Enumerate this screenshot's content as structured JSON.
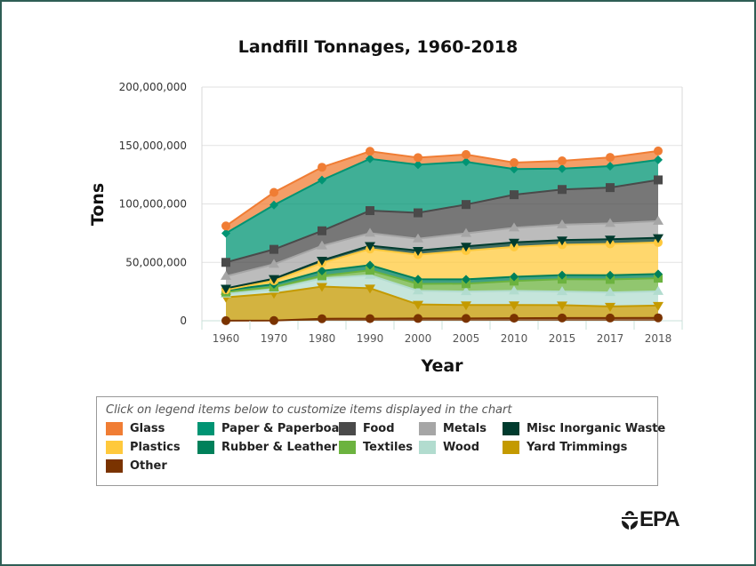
{
  "frame": {
    "border_color": "#2e5e55"
  },
  "chart_data": {
    "type": "area",
    "stacked": true,
    "title": "Landfill Tonnages, 1960-2018",
    "xlabel": "Year",
    "ylabel": "Tons",
    "ylim": [
      0,
      200000000
    ],
    "yticks": [
      0,
      50000000,
      100000000,
      150000000,
      200000000
    ],
    "ytick_labels": [
      "0",
      "50,000,000",
      "100,000,000",
      "150,000,000",
      "200,000,000"
    ],
    "categories": [
      "1960",
      "1970",
      "1980",
      "1990",
      "2000",
      "2005",
      "2010",
      "2015",
      "2017",
      "2018"
    ],
    "grid": true,
    "legend_position": "bottom",
    "series": [
      {
        "name": "Other",
        "color": "#7a3300",
        "marker": "circle",
        "values": [
          100000,
          200000,
          1750000,
          1830000,
          1950000,
          2000000,
          2200000,
          2400000,
          2350000,
          2500000
        ]
      },
      {
        "name": "Yard Trimmings",
        "color": "#c49a00",
        "marker": "triangle-down",
        "values": [
          20000000,
          23200000,
          27500000,
          26000000,
          12000000,
          11500000,
          11300000,
          11000000,
          9900000,
          10500000
        ]
      },
      {
        "name": "Wood",
        "color": "#b2dccf",
        "marker": "triangle-up",
        "values": [
          2950000,
          3710000,
          7010000,
          11100000,
          11750000,
          11500000,
          12100000,
          11600000,
          12000000,
          12150000
        ]
      },
      {
        "name": "Textiles",
        "color": "#6cb33f",
        "marker": "square",
        "values": [
          1530000,
          1840000,
          2220000,
          4270000,
          5880000,
          6750000,
          8400000,
          10600000,
          11150000,
          11300000
        ]
      },
      {
        "name": "Rubber & Leather",
        "color": "#00805a",
        "marker": "diamond",
        "values": [
          1510000,
          2370000,
          4190000,
          4400000,
          3980000,
          3700000,
          3630000,
          3460000,
          3570000,
          3540000
        ]
      },
      {
        "name": "Plastics",
        "color": "#ffc93c",
        "marker": "circle",
        "values": [
          390000,
          2900000,
          6810000,
          13780000,
          21020000,
          24570000,
          25620000,
          26010000,
          26830000,
          27000000
        ]
      },
      {
        "name": "Misc Inorganic Waste",
        "color": "#003b2e",
        "marker": "triangle-down",
        "values": [
          1300000,
          1780000,
          2250000,
          2900000,
          3500000,
          3690000,
          3840000,
          3950000,
          4000000,
          4030000
        ]
      },
      {
        "name": "Metals",
        "color": "#a6a6a6",
        "marker": "triangle-up",
        "values": [
          10300000,
          12360000,
          12420000,
          10700000,
          10050000,
          11140000,
          12490000,
          13200000,
          13570000,
          14250000
        ]
      },
      {
        "name": "Food",
        "color": "#4a4a4a",
        "marker": "square",
        "values": [
          11900000,
          12750000,
          12830000,
          19270000,
          22240000,
          24630000,
          28300000,
          30150000,
          30600000,
          35280000
        ]
      },
      {
        "name": "Paper & Paperboard",
        "color": "#009473",
        "marker": "diamond",
        "values": [
          24910000,
          37950000,
          43420000,
          44350000,
          41190000,
          36550000,
          21970000,
          17860000,
          18350000,
          17220000
        ]
      },
      {
        "name": "Glass",
        "color": "#f07d34",
        "marker": "circle",
        "values": [
          6250000,
          10830000,
          11000000,
          6420000,
          6100000,
          6250000,
          5530000,
          6650000,
          7550000,
          7550000
        ]
      }
    ]
  },
  "legend": {
    "note": "Click on legend items below to customize items displayed in the chart",
    "items": [
      {
        "label": "Glass",
        "color": "#f07d34"
      },
      {
        "label": "Paper & Paperboard",
        "color": "#009473"
      },
      {
        "label": "Food",
        "color": "#4a4a4a"
      },
      {
        "label": "Metals",
        "color": "#a6a6a6"
      },
      {
        "label": "Misc Inorganic Waste",
        "color": "#003b2e"
      },
      {
        "label": "Plastics",
        "color": "#ffc93c"
      },
      {
        "label": "Rubber & Leather",
        "color": "#00805a"
      },
      {
        "label": "Textiles",
        "color": "#6cb33f"
      },
      {
        "label": "Wood",
        "color": "#b2dccf"
      },
      {
        "label": "Yard Trimmings",
        "color": "#c49a00"
      },
      {
        "label": "Other",
        "color": "#7a3300"
      }
    ]
  },
  "logo": {
    "text": "EPA",
    "icon": "epa-flower-icon"
  }
}
